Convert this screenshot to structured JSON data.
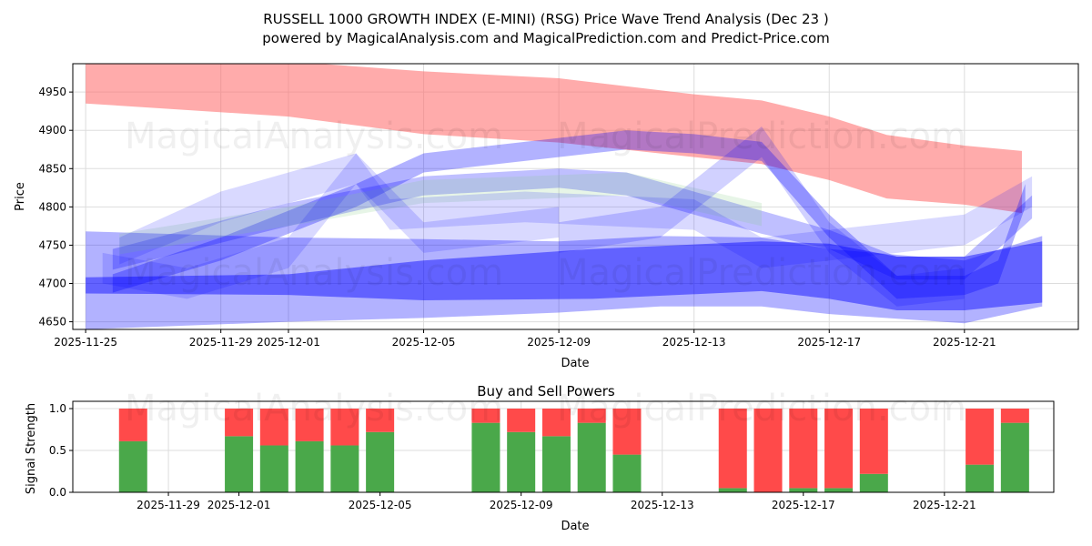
{
  "title": "RUSSELL 1000 GROWTH INDEX (E-MINI) (RSG) Price Wave Trend Analysis (Dec 23 )",
  "subtitle": "powered by MagicalAnalysis.com and MagicalPrediction.com and Predict-Price.com",
  "watermarks": [
    "MagicalAnalysis.com",
    "MagicalPrediction.com"
  ],
  "chart_data": [
    {
      "type": "area",
      "title": "",
      "xlabel": "Date",
      "ylabel": "Price",
      "x_origin": "2025-11-25",
      "xlim_days": [
        -0.38,
        29.37
      ],
      "ylim": [
        4640,
        4987
      ],
      "yticks": [
        4650,
        4700,
        4750,
        4800,
        4850,
        4900,
        4950
      ],
      "xticks": [
        {
          "day": 0,
          "label": "2025-11-25"
        },
        {
          "day": 4,
          "label": "2025-11-29"
        },
        {
          "day": 6,
          "label": "2025-12-01"
        },
        {
          "day": 10,
          "label": "2025-12-05"
        },
        {
          "day": 14,
          "label": "2025-12-09"
        },
        {
          "day": 18,
          "label": "2025-12-13"
        },
        {
          "day": 22,
          "label": "2025-12-17"
        },
        {
          "day": 26,
          "label": "2025-12-21"
        }
      ],
      "grid": true,
      "bands": [
        {
          "color": "#ff6666",
          "opacity": 0.55,
          "points": [
            [
              0,
              4935,
              4995
            ],
            [
              6,
              4918,
              4990
            ],
            [
              10,
              4895,
              4977
            ],
            [
              14,
              4884,
              4968
            ],
            [
              18,
              4865,
              4947
            ],
            [
              20,
              4856,
              4939
            ],
            [
              22,
              4835,
              4918
            ],
            [
              23.7,
              4811,
              4894
            ],
            [
              26,
              4803,
              4880
            ],
            [
              27.7,
              4792,
              4873
            ]
          ]
        },
        {
          "color": "#0000ff",
          "opacity": 0.3,
          "points": [
            [
              0,
              4640,
              4768
            ],
            [
              6,
              4650,
              4760
            ],
            [
              10,
              4655,
              4758
            ],
            [
              14,
              4662,
              4755
            ],
            [
              17,
              4670,
              4762
            ],
            [
              20,
              4670,
              4760
            ],
            [
              22,
              4660,
              4745
            ],
            [
              26,
              4648,
              4730
            ],
            [
              28.3,
              4670,
              4762
            ]
          ]
        },
        {
          "color": "#0000ff",
          "opacity": 0.45,
          "points": [
            [
              0,
              4687,
              4708
            ],
            [
              6,
              4685,
              4712
            ],
            [
              10,
              4678,
              4730
            ],
            [
              15,
              4680,
              4745
            ],
            [
              20,
              4690,
              4755
            ],
            [
              22,
              4680,
              4752
            ],
            [
              24,
              4665,
              4735
            ],
            [
              26,
              4665,
              4735
            ],
            [
              28.3,
              4675,
              4755
            ]
          ]
        },
        {
          "color": "#0000ff",
          "opacity": 0.3,
          "points": [
            [
              0.8,
              4688,
              4712
            ],
            [
              4,
              4730,
              4760
            ],
            [
              8,
              4800,
              4830
            ],
            [
              10,
              4845,
              4870
            ],
            [
              14,
              4865,
              4890
            ],
            [
              16,
              4875,
              4900
            ],
            [
              18,
              4870,
              4895
            ],
            [
              20,
              4860,
              4885
            ],
            [
              22,
              4760,
              4790
            ],
            [
              24,
              4680,
              4710
            ],
            [
              26,
              4685,
              4710
            ],
            [
              27,
              4700,
              4730
            ],
            [
              27.8,
              4800,
              4830
            ]
          ]
        },
        {
          "color": "#0000ff",
          "opacity": 0.25,
          "points": [
            [
              0.8,
              4718,
              4745
            ],
            [
              6,
              4775,
              4805
            ],
            [
              10,
              4815,
              4840
            ],
            [
              14,
              4825,
              4850
            ],
            [
              16,
              4815,
              4845
            ],
            [
              20,
              4765,
              4795
            ],
            [
              22,
              4745,
              4770
            ],
            [
              24,
              4705,
              4735
            ],
            [
              26,
              4705,
              4735
            ],
            [
              28,
              4785,
              4815
            ]
          ]
        },
        {
          "color": "#88cc88",
          "opacity": 0.2,
          "points": [
            [
              1,
              4738,
              4765
            ],
            [
              6,
              4775,
              4800
            ],
            [
              10,
              4805,
              4835
            ],
            [
              16,
              4815,
              4845
            ],
            [
              18,
              4795,
              4825
            ],
            [
              20,
              4775,
              4805
            ]
          ]
        },
        {
          "color": "#0000ff",
          "opacity": 0.15,
          "points": [
            [
              1,
              4725,
              4760
            ],
            [
              4,
              4780,
              4820
            ],
            [
              8,
              4830,
              4870
            ],
            [
              9,
              4770,
              4810
            ],
            [
              13,
              4780,
              4820
            ],
            [
              18,
              4770,
              4810
            ],
            [
              20,
              4720,
              4760
            ],
            [
              24,
              4740,
              4780
            ],
            [
              26,
              4750,
              4790
            ],
            [
              28,
              4800,
              4840
            ]
          ]
        },
        {
          "color": "#0000ff",
          "opacity": 0.18,
          "points": [
            [
              14,
              4740,
              4780
            ],
            [
              17,
              4760,
              4800
            ],
            [
              20,
              4865,
              4905
            ],
            [
              22,
              4740,
              4780
            ],
            [
              24,
              4670,
              4710
            ],
            [
              26,
              4680,
              4720
            ]
          ]
        },
        {
          "color": "#0000ff",
          "opacity": 0.15,
          "points": [
            [
              0.5,
              4700,
              4740
            ],
            [
              3,
              4680,
              4720
            ],
            [
              6,
              4720,
              4760
            ],
            [
              8,
              4830,
              4870
            ],
            [
              10,
              4740,
              4780
            ],
            [
              14,
              4760,
              4800
            ]
          ]
        }
      ]
    },
    {
      "type": "bar",
      "title": "Buy and Sell Powers",
      "xlabel": "Date",
      "ylabel": "Signal Strength",
      "x_origin": "2025-11-25",
      "xlim_days": [
        1.29,
        29.1
      ],
      "ylim": [
        0,
        1.087
      ],
      "yticks": [
        "0.0",
        "0.5",
        "1.0"
      ],
      "xticks": [
        {
          "day": 4,
          "label": "2025-11-29"
        },
        {
          "day": 6,
          "label": "2025-12-01"
        },
        {
          "day": 10,
          "label": "2025-12-05"
        },
        {
          "day": 14,
          "label": "2025-12-09"
        },
        {
          "day": 18,
          "label": "2025-12-13"
        },
        {
          "day": 22,
          "label": "2025-12-17"
        },
        {
          "day": 26,
          "label": "2025-12-21"
        }
      ],
      "grid": true,
      "buy_color": "#4aa84a",
      "sell_color": "#ff4a4a",
      "days": [
        3,
        6,
        7,
        8,
        9,
        10,
        13,
        14,
        15,
        16,
        17,
        20,
        21,
        22,
        23,
        24,
        27,
        28
      ],
      "categories": [
        "2025-11-28",
        "2025-12-01",
        "2025-12-02",
        "2025-12-03",
        "2025-12-04",
        "2025-12-05",
        "2025-12-08",
        "2025-12-09",
        "2025-12-10",
        "2025-12-11",
        "2025-12-12",
        "2025-12-15",
        "2025-12-16",
        "2025-12-17",
        "2025-12-18",
        "2025-12-19",
        "2025-12-22",
        "2025-12-23"
      ],
      "series": [
        {
          "name": "Buy",
          "values": [
            0.61,
            0.67,
            0.56,
            0.61,
            0.56,
            0.72,
            0.83,
            0.72,
            0.67,
            0.83,
            0.45,
            0.05,
            0.0,
            0.05,
            0.05,
            0.22,
            0.33,
            0.83
          ]
        },
        {
          "name": "Sell",
          "values": [
            0.39,
            0.33,
            0.44,
            0.39,
            0.44,
            0.28,
            0.17,
            0.28,
            0.33,
            0.17,
            0.55,
            0.95,
            1.0,
            0.95,
            0.95,
            0.78,
            0.67,
            0.17
          ]
        }
      ]
    }
  ]
}
